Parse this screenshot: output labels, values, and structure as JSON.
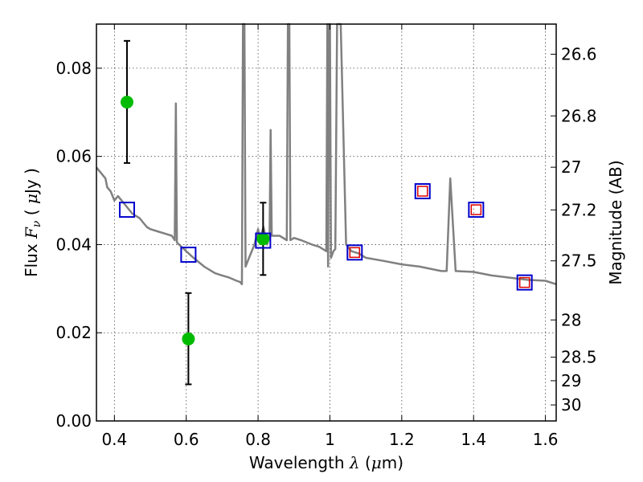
{
  "chart_data": {
    "type": "scatter",
    "xlabel": {
      "prefix": "Wavelength  ",
      "symbol": "λ",
      "units": " (",
      "mu": "μ",
      "units_end": "m)"
    },
    "ylabel": {
      "prefix": "Flux  ",
      "symbol": "F",
      "sub": "ν",
      "units": " ( ",
      "mu": "μ",
      "units_end": "Jy )"
    },
    "y2label": "Magnitude (AB)",
    "xlim": [
      0.35,
      1.63
    ],
    "ylim": [
      0.0,
      0.09
    ],
    "grid": true,
    "x_ticks": [
      0.4,
      0.6,
      0.8,
      1.0,
      1.2,
      1.4,
      1.6
    ],
    "x_tick_labels": [
      "0.4",
      "0.6",
      "0.8",
      "1",
      "1.2",
      "1.4",
      "1.6"
    ],
    "y_ticks": [
      0.0,
      0.02,
      0.04,
      0.06,
      0.08
    ],
    "y_tick_labels": [
      "0.00",
      "0.02",
      "0.04",
      "0.06",
      "0.08"
    ],
    "y2_ticks": [
      "26.6",
      "26.8",
      "27",
      "27.2",
      "27.5",
      "28",
      "28.5",
      "29",
      "30"
    ],
    "colors": {
      "model": "#808080",
      "photometry": "#00bb00",
      "model_box": "#0000cc",
      "model_box_inner": "#dd0000",
      "errorbar": "#000000"
    },
    "series": [
      {
        "style": "line",
        "points": [
          [
            0.35,
            0.0575
          ],
          [
            0.365,
            0.056
          ],
          [
            0.375,
            0.055
          ],
          [
            0.38,
            0.053
          ],
          [
            0.39,
            0.052
          ],
          [
            0.4,
            0.05
          ],
          [
            0.41,
            0.051
          ],
          [
            0.42,
            0.05
          ],
          [
            0.43,
            0.049
          ],
          [
            0.44,
            0.048
          ],
          [
            0.45,
            0.047
          ],
          [
            0.46,
            0.0465
          ],
          [
            0.47,
            0.046
          ],
          [
            0.48,
            0.045
          ],
          [
            0.49,
            0.044
          ],
          [
            0.5,
            0.0435
          ],
          [
            0.52,
            0.043
          ],
          [
            0.54,
            0.0425
          ],
          [
            0.56,
            0.042
          ],
          [
            0.568,
            0.041
          ],
          [
            0.571,
            0.072
          ],
          [
            0.574,
            0.0405
          ],
          [
            0.58,
            0.04
          ],
          [
            0.6,
            0.0385
          ],
          [
            0.62,
            0.037
          ],
          [
            0.65,
            0.035
          ],
          [
            0.68,
            0.0335
          ],
          [
            0.7,
            0.033
          ],
          [
            0.72,
            0.0325
          ],
          [
            0.74,
            0.0318
          ],
          [
            0.75,
            0.0315
          ],
          [
            0.755,
            0.031
          ],
          [
            0.758,
            0.09
          ],
          [
            0.762,
            0.09
          ],
          [
            0.765,
            0.035
          ],
          [
            0.775,
            0.037
          ],
          [
            0.79,
            0.04
          ],
          [
            0.8,
            0.0435
          ],
          [
            0.805,
            0.041
          ],
          [
            0.815,
            0.044
          ],
          [
            0.825,
            0.04
          ],
          [
            0.832,
            0.042
          ],
          [
            0.835,
            0.066
          ],
          [
            0.838,
            0.042
          ],
          [
            0.86,
            0.042
          ],
          [
            0.88,
            0.041
          ],
          [
            0.883,
            0.09
          ],
          [
            0.887,
            0.09
          ],
          [
            0.89,
            0.041
          ],
          [
            0.9,
            0.0415
          ],
          [
            0.92,
            0.041
          ],
          [
            0.95,
            0.04
          ],
          [
            0.97,
            0.0395
          ],
          [
            0.99,
            0.0385
          ],
          [
            0.993,
            0.09
          ],
          [
            0.995,
            0.035
          ],
          [
            0.998,
            0.09
          ],
          [
            1.0,
            0.09
          ],
          [
            1.003,
            0.037
          ],
          [
            1.01,
            0.0385
          ],
          [
            1.015,
            0.039
          ],
          [
            1.02,
            0.09
          ],
          [
            1.03,
            0.09
          ],
          [
            1.045,
            0.04
          ],
          [
            1.06,
            0.0385
          ],
          [
            1.08,
            0.038
          ],
          [
            1.1,
            0.037
          ],
          [
            1.15,
            0.0363
          ],
          [
            1.2,
            0.0355
          ],
          [
            1.25,
            0.035
          ],
          [
            1.28,
            0.0345
          ],
          [
            1.31,
            0.034
          ],
          [
            1.325,
            0.034
          ],
          [
            1.335,
            0.055
          ],
          [
            1.35,
            0.034
          ],
          [
            1.4,
            0.0338
          ],
          [
            1.45,
            0.033
          ],
          [
            1.5,
            0.0325
          ],
          [
            1.55,
            0.032
          ],
          [
            1.6,
            0.0318
          ],
          [
            1.63,
            0.031
          ]
        ]
      },
      {
        "style": "errorbar",
        "points": [
          {
            "x": 0.435,
            "y": 0.0723,
            "ylo": 0.0585,
            "yhi": 0.0862
          },
          {
            "x": 0.606,
            "y": 0.0186,
            "ylo": 0.0083,
            "yhi": 0.029
          },
          {
            "x": 0.814,
            "y": 0.0413,
            "ylo": 0.0331,
            "yhi": 0.0495
          }
        ]
      },
      {
        "style": "boxes",
        "points": [
          {
            "x": 0.435,
            "y": 0.0479,
            "inner": false
          },
          {
            "x": 0.606,
            "y": 0.0377,
            "inner": false
          },
          {
            "x": 0.814,
            "y": 0.0409,
            "inner": false
          },
          {
            "x": 1.069,
            "y": 0.0382,
            "inner": true
          },
          {
            "x": 1.258,
            "y": 0.0521,
            "inner": true
          },
          {
            "x": 1.407,
            "y": 0.0479,
            "inner": true
          },
          {
            "x": 1.542,
            "y": 0.0314,
            "inner": true
          }
        ]
      }
    ]
  }
}
